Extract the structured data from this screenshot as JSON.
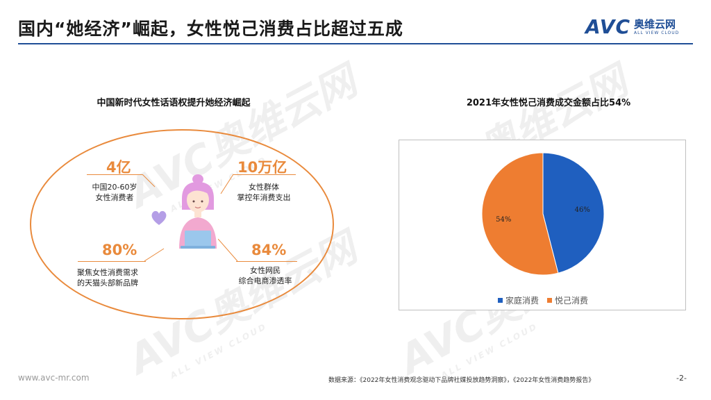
{
  "header": {
    "title": "国内“她经济”崛起，女性悦己消费占比超过五成",
    "logo_text": "AVC",
    "logo_cn": "奥维云网",
    "logo_en": "ALL VIEW CLOUD"
  },
  "left": {
    "subtitle": "中国新时代女性话语权提升她经济崛起",
    "stats": [
      {
        "value": "4亿",
        "label_line1": "中国20-60岁",
        "label_line2": "女性消费者"
      },
      {
        "value": "10万亿",
        "label_line1": "女性群体",
        "label_line2": "掌控年消费支出"
      },
      {
        "value": "80%",
        "label_line1": "聚焦女性消费需求",
        "label_line2": "的天猫头部新品牌"
      },
      {
        "value": "84%",
        "label_line1": "女性网民",
        "label_line2": "综合电商渗透率"
      }
    ]
  },
  "right": {
    "subtitle": "2021年女性悦己消费成交金额占比54%"
  },
  "chart_data": {
    "type": "pie",
    "title": "2021年女性悦己消费成交金额占比54%",
    "series": [
      {
        "name": "家庭消费",
        "value": 46,
        "label": "46%",
        "color": "#1f5fbf"
      },
      {
        "name": "悦己消费",
        "value": 54,
        "label": "54%",
        "color": "#ee7d31"
      }
    ],
    "legend_position": "bottom"
  },
  "watermark": {
    "text": "AVC奥维云网",
    "en": "ALL VIEW CLOUD"
  },
  "footer": {
    "url": "www.avc-mr.com",
    "source": "数据来源：《2022年女性消费观念驱动下品牌社媒投放趋势洞察》，《2022年女性消费趋势报告》",
    "page": "-2-"
  }
}
